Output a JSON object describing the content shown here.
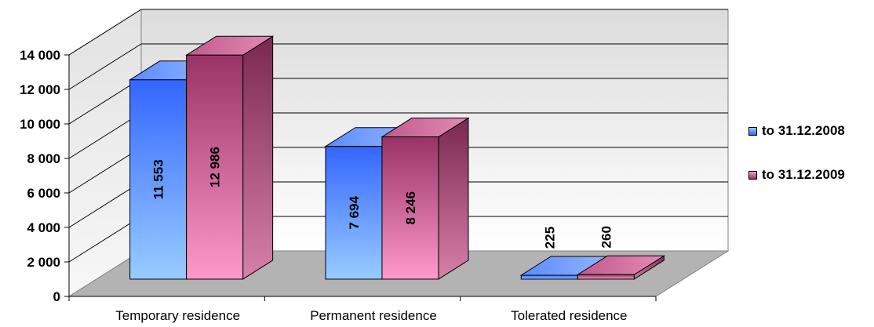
{
  "chart_data": {
    "type": "bar",
    "categories": [
      "Temporary residence",
      "Permanent residence",
      "Tolerated residence"
    ],
    "series": [
      {
        "name": "to 31.12.2008",
        "values": [
          11553,
          7694,
          225
        ],
        "labels": [
          "11 553",
          "7 694",
          "225"
        ]
      },
      {
        "name": "to 31.12.2009",
        "values": [
          12986,
          8246,
          260
        ],
        "labels": [
          "12 986",
          "8 246",
          "260"
        ]
      }
    ],
    "ylim": [
      0,
      14000
    ],
    "yticks": [
      0,
      2000,
      4000,
      6000,
      8000,
      10000,
      12000,
      14000
    ],
    "ytick_labels": [
      "0",
      "2 000",
      "4 000",
      "6 000",
      "8 000",
      "10 000",
      "12 000",
      "14 000"
    ],
    "grid": true,
    "legend_position": "right",
    "style": "3d-clustered-bar",
    "colors": {
      "series_2008_light": "#99ccff",
      "series_2008_dark": "#3366ff",
      "series_2009_light": "#ff99cc",
      "series_2009_dark": "#993366",
      "back_wall_top": "#e6e6e6",
      "floor": "#b3b3b3"
    }
  }
}
